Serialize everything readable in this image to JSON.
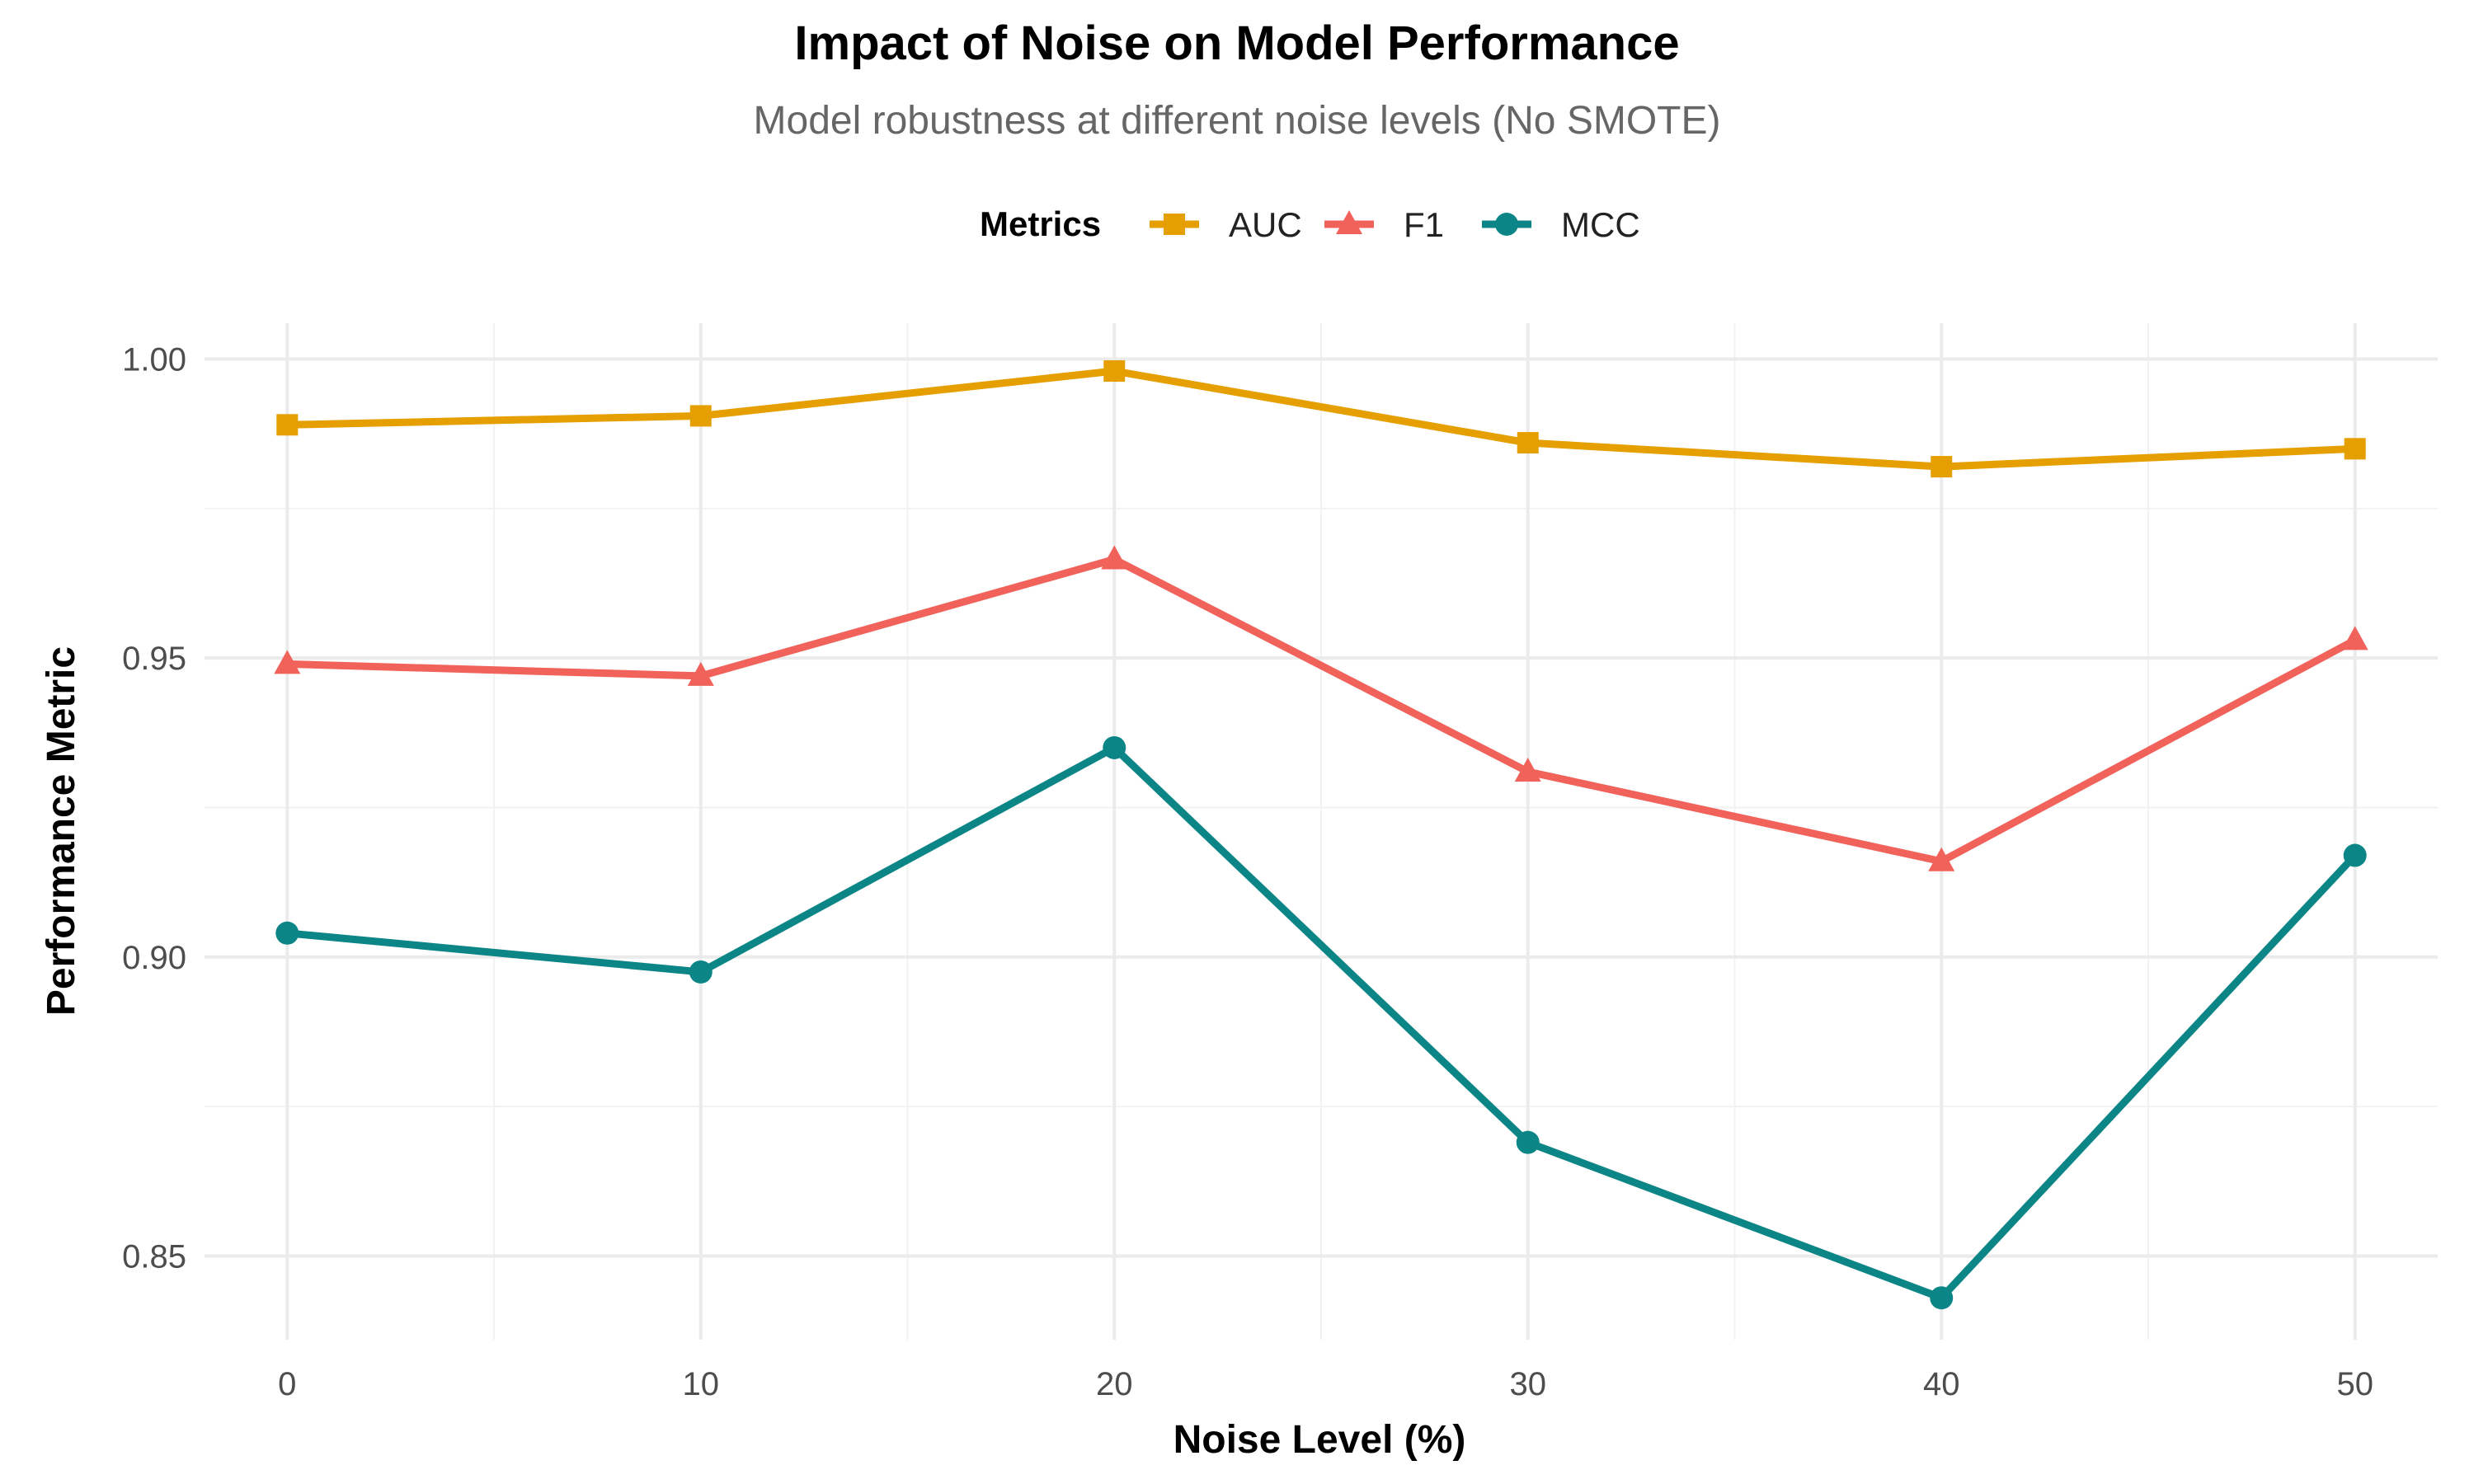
{
  "chart_data": {
    "type": "line",
    "title": "Impact of Noise on Model Performance",
    "subtitle": "Model robustness at different noise levels (No SMOTE)",
    "xlabel": "Noise Level (%)",
    "ylabel": "Performance Metric",
    "x": [
      0,
      10,
      20,
      30,
      40,
      50
    ],
    "x_ticks": [
      "0",
      "10",
      "20",
      "30",
      "40",
      "50"
    ],
    "y_ticks": [
      "0.85",
      "0.90",
      "0.95",
      "1.00"
    ],
    "xlim": [
      -2,
      52
    ],
    "ylim": [
      0.836,
      1.006
    ],
    "grid": true,
    "legend": {
      "title": "Metrics",
      "position": "top"
    },
    "series": [
      {
        "name": "AUC",
        "marker": "square",
        "color": "#E69F00",
        "values": [
          0.989,
          0.9905,
          0.998,
          0.986,
          0.982,
          0.985
        ]
      },
      {
        "name": "F1",
        "marker": "triangle",
        "color": "#F0625A",
        "values": [
          0.949,
          0.947,
          0.9665,
          0.931,
          0.916,
          0.953
        ]
      },
      {
        "name": "MCC",
        "marker": "circle",
        "color": "#0C8587",
        "values": [
          0.904,
          0.8975,
          0.935,
          0.869,
          0.843,
          0.917
        ]
      }
    ]
  }
}
